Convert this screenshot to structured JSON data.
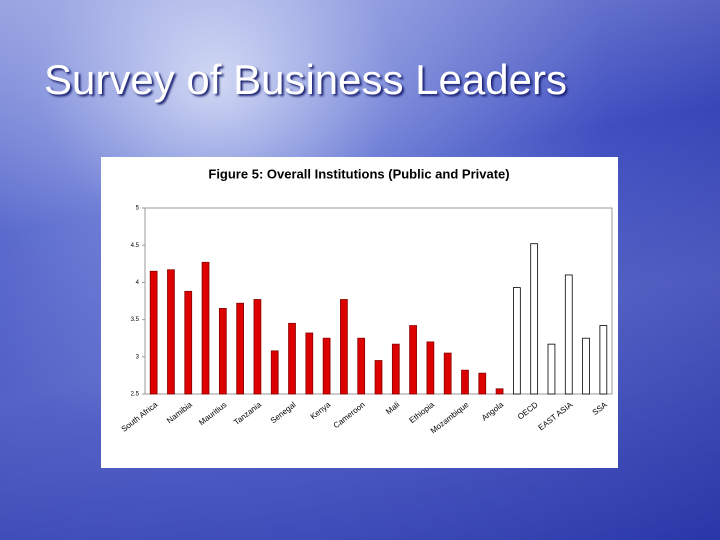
{
  "slide_title": "Survey of Business Leaders",
  "chart_data": {
    "type": "bar",
    "title": "Figure 5: Overall Institutions (Public and Private)",
    "categories": [
      "South Africa",
      null,
      "Namibia",
      null,
      "Mauritius",
      null,
      "Tanzania",
      null,
      "Senegal",
      null,
      "Kenya",
      null,
      "Cameroon",
      null,
      "Mali",
      null,
      "Ethiopia",
      null,
      "Mozambique",
      null,
      "Angola",
      null,
      "OECD",
      null,
      "EAST ASIA",
      null,
      "SSA"
    ],
    "values": [
      4.15,
      4.17,
      3.88,
      4.27,
      3.65,
      3.72,
      3.77,
      3.08,
      3.45,
      3.32,
      3.25,
      3.77,
      3.25,
      2.95,
      3.17,
      3.42,
      3.2,
      3.05,
      2.82,
      2.78,
      2.57,
      3.93,
      4.52,
      3.17,
      4.1,
      3.25,
      3.42
    ],
    "colors": [
      "#dd0000",
      "#dd0000",
      "#dd0000",
      "#dd0000",
      "#dd0000",
      "#dd0000",
      "#dd0000",
      "#dd0000",
      "#dd0000",
      "#dd0000",
      "#dd0000",
      "#dd0000",
      "#dd0000",
      "#dd0000",
      "#dd0000",
      "#dd0000",
      "#dd0000",
      "#dd0000",
      "#dd0000",
      "#dd0000",
      "#dd0000",
      "#ffffff",
      "#ffffff",
      "#ffffff",
      "#ffffff",
      "#ffffff",
      "#ffffff"
    ],
    "ylim": [
      2.5,
      5
    ],
    "yticks": [
      2.5,
      3,
      3.5,
      4,
      4.5,
      5
    ],
    "grid": false
  }
}
